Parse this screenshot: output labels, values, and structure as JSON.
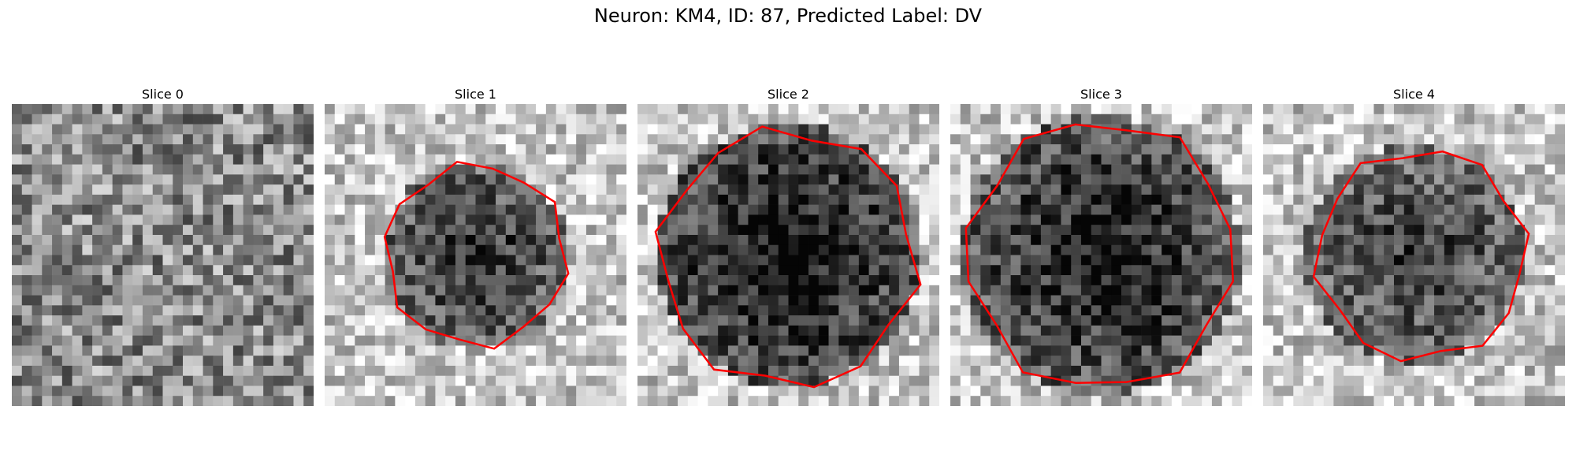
{
  "figure": {
    "title": "Neuron: KM4, ID: 87, Predicted Label: DV"
  },
  "panels": [
    {
      "title": "Slice 0",
      "has_contour": false,
      "dark_strength": 0.0,
      "contour_scale": 0.0
    },
    {
      "title": "Slice 1",
      "has_contour": true,
      "dark_strength": 0.55,
      "contour_scale": 0.62
    },
    {
      "title": "Slice 2",
      "has_contour": true,
      "dark_strength": 0.7,
      "contour_scale": 0.88
    },
    {
      "title": "Slice 3",
      "has_contour": true,
      "dark_strength": 0.65,
      "contour_scale": 0.92
    },
    {
      "title": "Slice 4",
      "has_contour": true,
      "dark_strength": 0.5,
      "contour_scale": 0.72
    }
  ],
  "colors": {
    "contour": "#ff0000",
    "background": "#ffffff"
  }
}
